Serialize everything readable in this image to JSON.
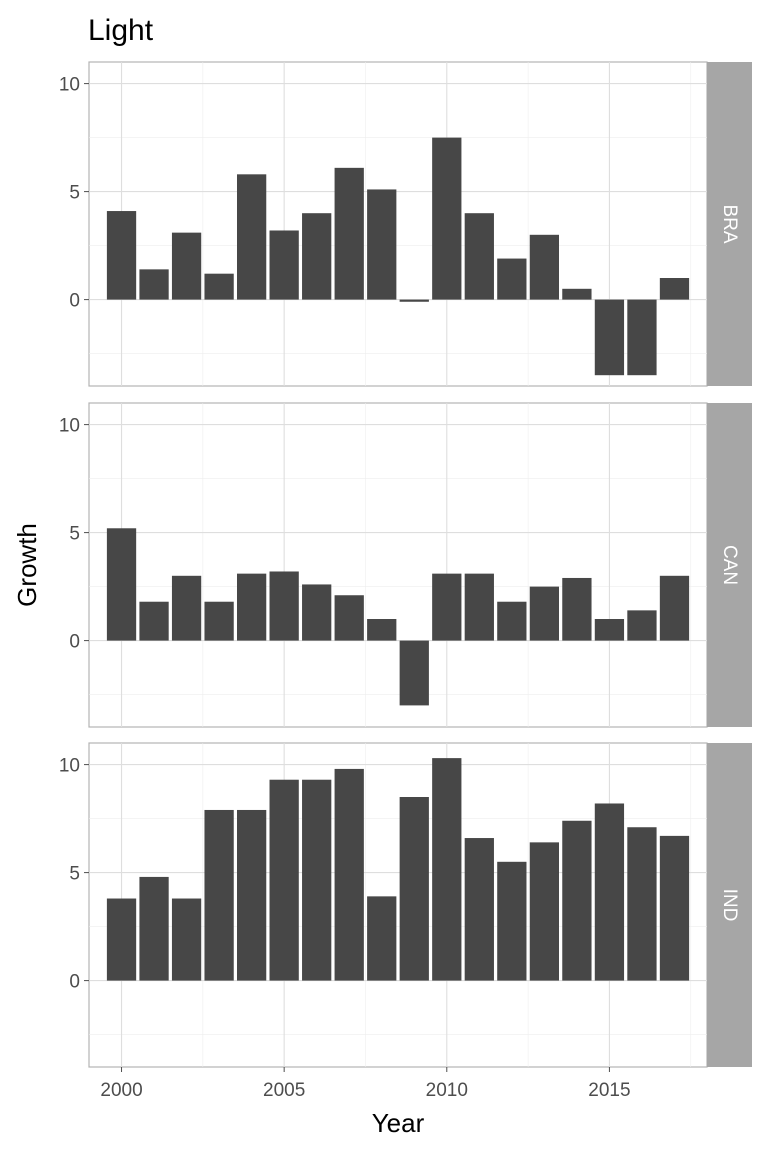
{
  "chart_data": {
    "type": "bar",
    "title": "Light",
    "xlabel": "Year",
    "ylabel": "Growth",
    "xlim": [
      1999,
      2018
    ],
    "ylim": [
      -4,
      11
    ],
    "x_ticks": [
      2000,
      2005,
      2010,
      2015
    ],
    "y_ticks": [
      0,
      5,
      10
    ],
    "x_tick_labels": [
      "2000",
      "2005",
      "2010",
      "2015"
    ],
    "y_tick_labels": [
      "0",
      "5",
      "10"
    ],
    "grid": true,
    "bar_color": "#474747",
    "strip_color": "#a6a6a6",
    "x": [
      2000,
      2001,
      2002,
      2003,
      2004,
      2005,
      2006,
      2007,
      2008,
      2009,
      2010,
      2011,
      2012,
      2013,
      2014,
      2015,
      2016,
      2017
    ],
    "panels": [
      {
        "label": "BRA",
        "values": [
          4.1,
          1.4,
          3.1,
          1.2,
          5.8,
          3.2,
          4.0,
          6.1,
          5.1,
          -0.1,
          7.5,
          4.0,
          1.9,
          3.0,
          0.5,
          -3.5,
          -3.5,
          1.0
        ]
      },
      {
        "label": "CAN",
        "values": [
          5.2,
          1.8,
          3.0,
          1.8,
          3.1,
          3.2,
          2.6,
          2.1,
          1.0,
          -3.0,
          3.1,
          3.1,
          1.8,
          2.5,
          2.9,
          1.0,
          1.4,
          3.0
        ]
      },
      {
        "label": "IND",
        "values": [
          3.8,
          4.8,
          3.8,
          7.9,
          7.9,
          9.3,
          9.3,
          9.8,
          3.9,
          8.5,
          10.3,
          6.6,
          5.5,
          6.4,
          7.4,
          8.2,
          7.1,
          6.7
        ]
      }
    ]
  }
}
